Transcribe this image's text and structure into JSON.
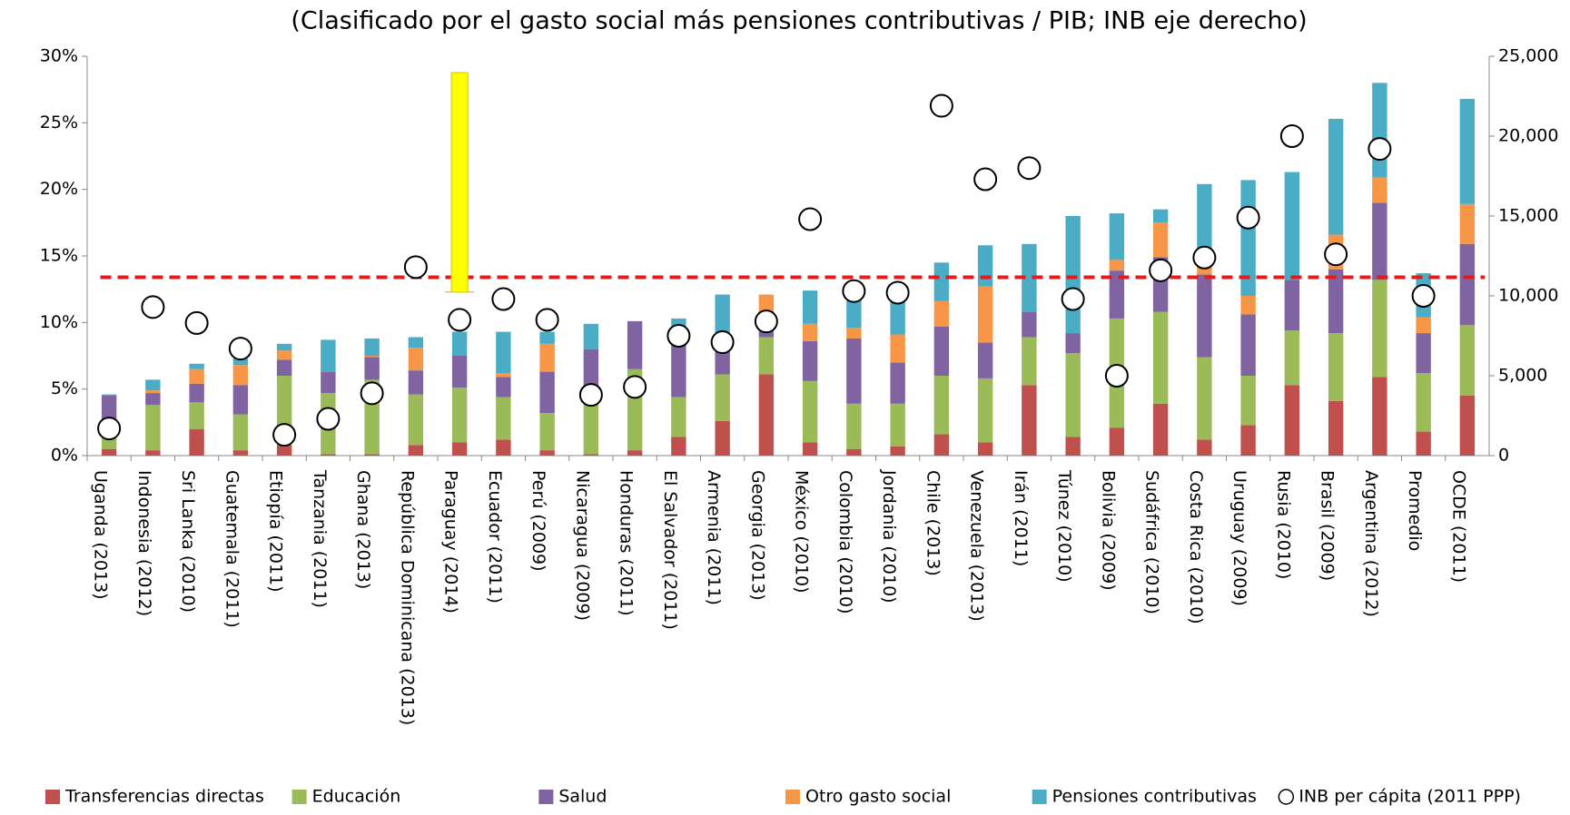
{
  "chart_data": {
    "type": "bar",
    "stacked": true,
    "title": "(Clasificado por el gasto social más pensiones contributivas / PIB; INB eje derecho)",
    "categories": [
      "Uganda (2013)",
      "Indonesia (2012)",
      "Sri Lanka (2010)",
      "Guatemala (2011)",
      "Etiopía (2011)",
      "Tanzania (2011)",
      "Ghana (2013)",
      "República Dominicana (2013)",
      "Paraguay (2014)",
      "Ecuador (2011)",
      "Perú (2009)",
      "Nicaragua (2009)",
      "Honduras (2011)",
      "El Salvador (2011)",
      "Armenia (2011)",
      "Georgia (2013)",
      "México (2010)",
      "Colombia (2010)",
      "Jordania (2010)",
      "Chile (2013)",
      "Venezuela (2013)",
      "Irán (2011)",
      "Túnez (2010)",
      "Bolivia (2009)",
      "Sudáfrica (2010)",
      "Costa Rica (2010)",
      "Uruguay (2009)",
      "Rusia (2010)",
      "Brasil (2009)",
      "Argentina (2012)",
      "Promedio",
      "OCDE (2011)"
    ],
    "series": [
      {
        "name": "Transferencias directas",
        "color": "#c0504d",
        "values": [
          0.5,
          0.4,
          2.0,
          0.4,
          0.8,
          0.1,
          0.1,
          0.8,
          1.0,
          1.2,
          0.4,
          0.1,
          0.4,
          1.4,
          2.6,
          6.1,
          1.0,
          0.5,
          0.7,
          1.6,
          1.0,
          5.3,
          1.4,
          2.1,
          3.9,
          1.2,
          2.3,
          5.3,
          4.1,
          5.9,
          1.8,
          4.5
        ]
      },
      {
        "name": "Educación",
        "color": "#9bbb59",
        "values": [
          0.9,
          3.4,
          2.0,
          2.7,
          5.2,
          4.6,
          5.6,
          3.8,
          4.1,
          3.2,
          2.8,
          4.5,
          6.1,
          3.0,
          3.5,
          2.8,
          4.6,
          3.4,
          3.2,
          4.4,
          4.8,
          3.6,
          6.3,
          8.2,
          6.9,
          6.2,
          3.7,
          4.1,
          5.1,
          7.3,
          4.4,
          5.3
        ]
      },
      {
        "name": "Salud",
        "color": "#8064a2",
        "values": [
          3.1,
          0.9,
          1.4,
          2.2,
          1.2,
          1.6,
          1.7,
          1.8,
          2.4,
          1.5,
          3.1,
          3.4,
          3.6,
          4.2,
          1.7,
          0.6,
          3.0,
          4.9,
          3.1,
          3.7,
          2.7,
          1.9,
          1.5,
          3.6,
          4.1,
          6.2,
          4.6,
          3.8,
          4.8,
          5.8,
          3.0,
          6.1
        ]
      },
      {
        "name": "Otro gasto social",
        "color": "#f79646",
        "values": [
          0,
          0.2,
          1.1,
          1.5,
          0.7,
          0,
          0.1,
          1.7,
          0,
          0.3,
          2.1,
          0,
          0,
          0.1,
          0.1,
          2.6,
          1.3,
          0.8,
          2.1,
          1.9,
          4.2,
          0,
          0,
          0.8,
          2.6,
          0.8,
          1.4,
          0,
          2.6,
          1.9,
          1.2,
          3.0
        ]
      },
      {
        "name": "Pensiones contributivas",
        "color": "#4bacc6",
        "values": [
          0.1,
          0.8,
          0.4,
          0.5,
          0.5,
          2.4,
          1.3,
          0.8,
          1.8,
          3.1,
          0.9,
          1.9,
          0,
          1.6,
          4.2,
          0,
          2.5,
          2.6,
          2.9,
          2.9,
          3.1,
          5.1,
          8.8,
          3.5,
          1.0,
          6.0,
          8.7,
          8.1,
          8.7,
          7.1,
          3.3,
          7.9
        ]
      },
      {
        "name": "INB per cápita (2011 PPP)",
        "type": "scatter",
        "axis": "y2",
        "color": "#ffffff",
        "values": [
          1700,
          9300,
          8300,
          6700,
          1300,
          2300,
          3900,
          11800,
          8500,
          9800,
          8500,
          3800,
          4300,
          7500,
          7100,
          8400,
          14800,
          10300,
          10200,
          21900,
          17300,
          18000,
          9800,
          5000,
          11600,
          12400,
          14900,
          20000,
          12600,
          19200,
          10000,
          null
        ]
      }
    ],
    "reference_line": {
      "value": 13.4,
      "color": "#e41a1c"
    },
    "ylim": [
      0,
      30
    ],
    "yticks": [
      {
        "value": 0,
        "label": "0%"
      },
      {
        "value": 5,
        "label": "5%"
      },
      {
        "value": 10,
        "label": "10%"
      },
      {
        "value": 15,
        "label": "15%"
      },
      {
        "value": 20,
        "label": "20%"
      },
      {
        "value": 25,
        "label": "25%"
      },
      {
        "value": 30,
        "label": "30%"
      }
    ],
    "y2lim": [
      0,
      25000
    ],
    "y2ticks": [
      0,
      {
        "value": 5000,
        "label": "5,000"
      },
      {
        "value": 10000,
        "label": "10,000"
      },
      {
        "value": 15000,
        "label": "15,000"
      },
      {
        "value": 20000,
        "label": "20,000"
      },
      {
        "value": 25000,
        "label": "25,000"
      }
    ],
    "legend": "bottom"
  }
}
